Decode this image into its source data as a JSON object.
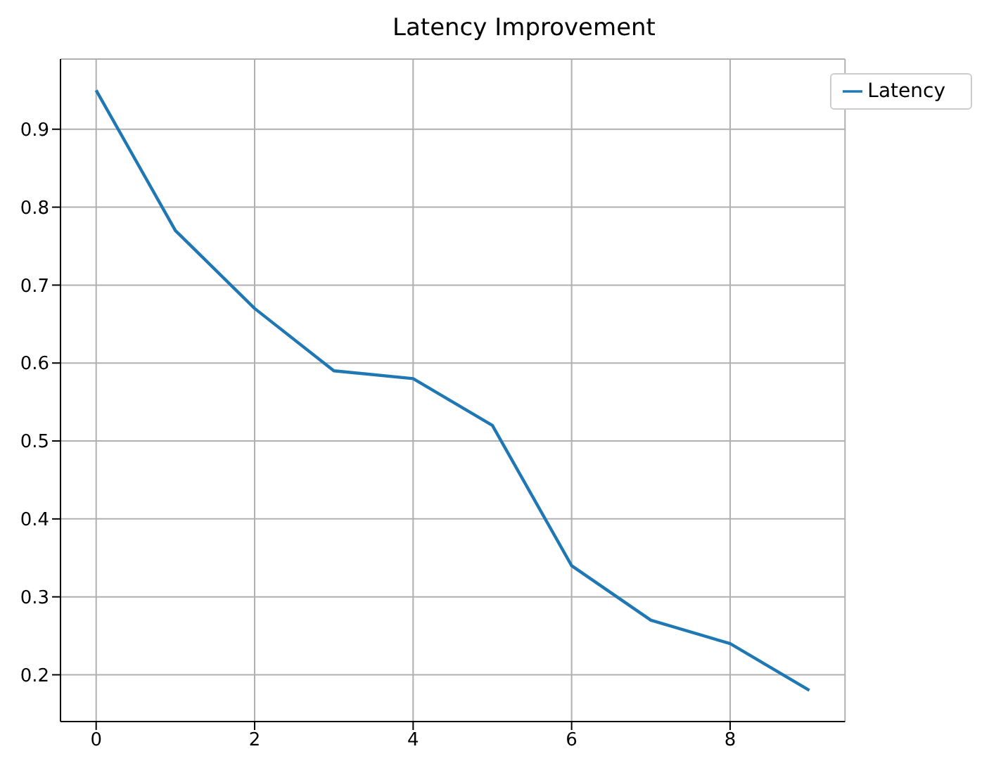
{
  "chart_data": {
    "type": "line",
    "title": "Latency Improvement",
    "x": [
      0,
      1,
      2,
      3,
      4,
      5,
      6,
      7,
      8,
      9
    ],
    "series": [
      {
        "name": "Latency",
        "color": "#1f77b4",
        "values": [
          0.95,
          0.77,
          0.67,
          0.59,
          0.58,
          0.52,
          0.34,
          0.27,
          0.24,
          0.18
        ]
      }
    ],
    "xlim": [
      -0.45,
      9.45
    ],
    "xticks": [
      0,
      2,
      4,
      6,
      8
    ],
    "ylim": [
      0.14,
      0.99
    ],
    "yticks": [
      0.2,
      0.3,
      0.4,
      0.5,
      0.6,
      0.7,
      0.8,
      0.9
    ],
    "grid": true,
    "legend": "top right",
    "marker": "none",
    "line_style": "solid"
  }
}
